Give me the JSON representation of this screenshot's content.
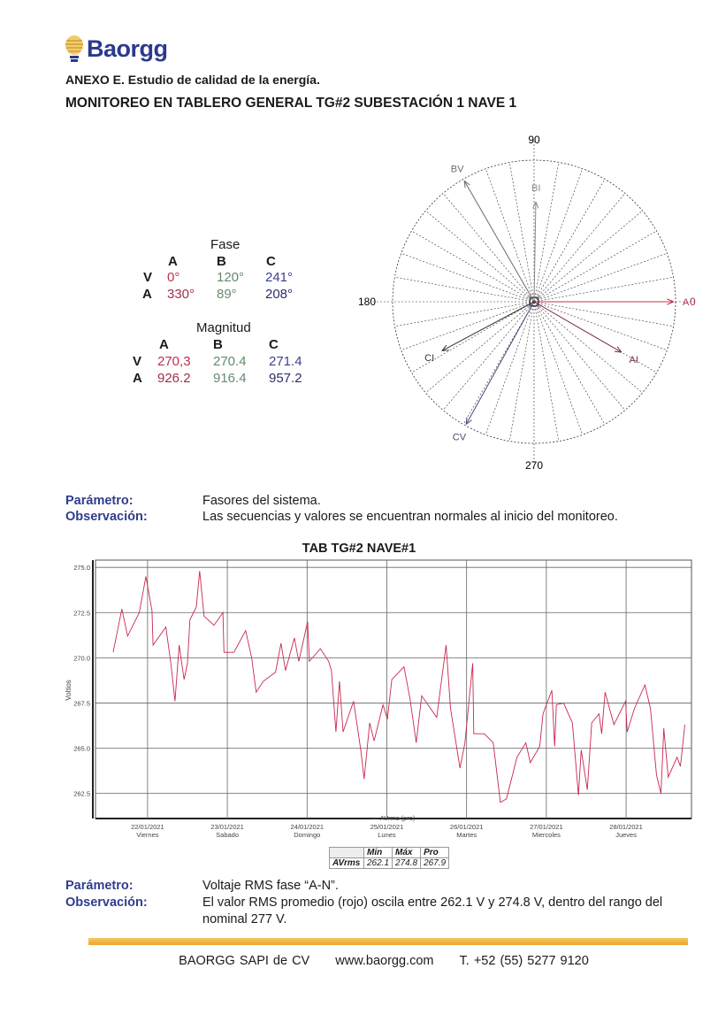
{
  "header": {
    "brand": "Baorgg",
    "annex_title": "ANEXO E. Estudio de calidad de la energía.",
    "section_title": "MONITOREO EN TABLERO GENERAL TG#2 SUBESTACIÓN 1 NAVE 1"
  },
  "phasor_table": {
    "fase_title": "Fase",
    "magnitud_title": "Magnitud",
    "columns": [
      "A",
      "B",
      "C"
    ],
    "rows": [
      "V",
      "A"
    ],
    "fase": {
      "V": [
        "0°",
        "120°",
        "241°"
      ],
      "A": [
        "330°",
        "89°",
        "208°"
      ]
    },
    "magnitud": {
      "V": [
        "270,3",
        "270.4",
        "271.4"
      ],
      "A": [
        "926.2",
        "916.4",
        "957.2"
      ]
    }
  },
  "phasor_diagram": {
    "axis_labels": {
      "top": "90",
      "left": "180",
      "bottom": "270",
      "right": "0"
    },
    "vectors": [
      {
        "label": "AV",
        "angle": 0,
        "magnitude": 270.3,
        "color": "#c0304a"
      },
      {
        "label": "BV",
        "angle": 120,
        "magnitude": 270.4,
        "color": "#6e6e6e"
      },
      {
        "label": "CV",
        "angle": 241,
        "magnitude": 271.4,
        "color": "#4a4c7a"
      },
      {
        "label": "AI",
        "angle": 330,
        "magnitude": 926.2,
        "color": "#7a2a4a"
      },
      {
        "label": "BI",
        "angle": 89,
        "magnitude": 916.4,
        "color": "#8a8a8a"
      },
      {
        "label": "CI",
        "angle": 208,
        "magnitude": 957.2,
        "color": "#333333"
      }
    ]
  },
  "section1": {
    "param_label": "Parámetro:",
    "param_value": "Fasores del sistema.",
    "obs_label": "Observación:",
    "obs_value": "Las secuencias y valores se encuentran normales al inicio del monitoreo."
  },
  "chart_data": {
    "type": "line",
    "title": "TAB TG#2 NAVE#1",
    "ylabel": "Voltios",
    "xlabel": "",
    "ylim": [
      261.6,
      275.4
    ],
    "xlim": [
      "2021-01-21T08:20",
      "2021-01-28T19:40"
    ],
    "yticks": [
      "275.0",
      "272.5",
      "270.0",
      "267.5",
      "265.0",
      "262.5"
    ],
    "xticks": [
      {
        "date": "22/01/2021",
        "day": "Viernes",
        "t": "2021-01-22T00:00"
      },
      {
        "date": "23/01/2021",
        "day": "Sabado",
        "t": "2021-01-23T00:00"
      },
      {
        "date": "24/01/2021",
        "day": "Domingo",
        "t": "2021-01-24T00:00"
      },
      {
        "date": "25/01/2021",
        "day": "Lunes",
        "t": "2021-01-25T00:00"
      },
      {
        "date": "26/01/2021",
        "day": "Martes",
        "t": "2021-01-26T00:00"
      },
      {
        "date": "27/01/2021",
        "day": "Miercoles",
        "t": "2021-01-27T00:00"
      },
      {
        "date": "28/01/2021",
        "day": "Jueves",
        "t": "2021-01-28T00:00"
      }
    ],
    "grid": true,
    "legend": "bottom",
    "series": [
      {
        "name": "AVrms (pro)",
        "color": "#c8284e",
        "points": [
          [
            "2021-01-21T13:40",
            270.3
          ],
          [
            "2021-01-21T16:15",
            272.7
          ],
          [
            "2021-01-21T18:00",
            271.2
          ],
          [
            "2021-01-21T21:30",
            272.5
          ],
          [
            "2021-01-21T23:30",
            274.5
          ],
          [
            "2021-01-22T01:20",
            272.6
          ],
          [
            "2021-01-22T01:40",
            270.7
          ],
          [
            "2021-01-22T05:30",
            271.7
          ],
          [
            "2021-01-22T07:00",
            269.7
          ],
          [
            "2021-01-22T08:15",
            267.6
          ],
          [
            "2021-01-22T09:30",
            270.7
          ],
          [
            "2021-01-22T11:00",
            268.8
          ],
          [
            "2021-01-22T12:00",
            269.7
          ],
          [
            "2021-01-22T12:45",
            272.1
          ],
          [
            "2021-01-22T14:40",
            272.8
          ],
          [
            "2021-01-22T15:40",
            274.8
          ],
          [
            "2021-01-22T17:00",
            272.3
          ],
          [
            "2021-01-22T20:00",
            271.8
          ],
          [
            "2021-01-22T22:40",
            272.5
          ],
          [
            "2021-01-22T23:00",
            270.3
          ],
          [
            "2021-01-23T02:00",
            270.3
          ],
          [
            "2021-01-23T05:30",
            271.5
          ],
          [
            "2021-01-23T07:20",
            270.0
          ],
          [
            "2021-01-23T08:40",
            268.1
          ],
          [
            "2021-01-23T10:50",
            268.7
          ],
          [
            "2021-01-23T14:30",
            269.2
          ],
          [
            "2021-01-23T16:10",
            270.8
          ],
          [
            "2021-01-23T17:30",
            269.3
          ],
          [
            "2021-01-23T20:10",
            271.1
          ],
          [
            "2021-01-23T21:30",
            269.8
          ],
          [
            "2021-01-24T00:10",
            272.0
          ],
          [
            "2021-01-24T00:40",
            269.8
          ],
          [
            "2021-01-24T04:00",
            270.5
          ],
          [
            "2021-01-24T06:30",
            269.8
          ],
          [
            "2021-01-24T07:20",
            269.3
          ],
          [
            "2021-01-24T08:40",
            265.9
          ],
          [
            "2021-01-24T09:45",
            268.7
          ],
          [
            "2021-01-24T10:50",
            265.9
          ],
          [
            "2021-01-24T14:00",
            267.6
          ],
          [
            "2021-01-24T16:10",
            264.9
          ],
          [
            "2021-01-24T17:10",
            263.3
          ],
          [
            "2021-01-24T18:50",
            266.4
          ],
          [
            "2021-01-24T20:10",
            265.4
          ],
          [
            "2021-01-24T22:50",
            267.4
          ],
          [
            "2021-01-25T00:10",
            266.6
          ],
          [
            "2021-01-25T01:30",
            268.8
          ],
          [
            "2021-01-25T05:10",
            269.5
          ],
          [
            "2021-01-25T07:00",
            267.7
          ],
          [
            "2021-01-25T08:50",
            265.3
          ],
          [
            "2021-01-25T10:30",
            267.9
          ],
          [
            "2021-01-25T15:00",
            266.7
          ],
          [
            "2021-01-25T17:50",
            270.7
          ],
          [
            "2021-01-25T19:10",
            267.2
          ],
          [
            "2021-01-25T22:00",
            263.9
          ],
          [
            "2021-01-25T23:30",
            265.3
          ],
          [
            "2021-01-26T01:50",
            269.7
          ],
          [
            "2021-01-26T02:10",
            265.8
          ],
          [
            "2021-01-26T05:20",
            265.8
          ],
          [
            "2021-01-26T08:00",
            265.3
          ],
          [
            "2021-01-26T10:10",
            262.0
          ],
          [
            "2021-01-26T12:00",
            262.2
          ],
          [
            "2021-01-26T15:10",
            264.5
          ],
          [
            "2021-01-26T17:50",
            265.3
          ],
          [
            "2021-01-26T19:10",
            264.2
          ],
          [
            "2021-01-26T22:00",
            265.1
          ],
          [
            "2021-01-26T23:00",
            266.9
          ],
          [
            "2021-01-27T01:40",
            268.2
          ],
          [
            "2021-01-27T02:30",
            265.1
          ],
          [
            "2021-01-27T03:00",
            267.4
          ],
          [
            "2021-01-27T05:10",
            267.5
          ],
          [
            "2021-01-27T07:50",
            266.4
          ],
          [
            "2021-01-27T09:40",
            262.4
          ],
          [
            "2021-01-27T10:30",
            264.9
          ],
          [
            "2021-01-27T12:20",
            262.7
          ],
          [
            "2021-01-27T13:40",
            266.4
          ],
          [
            "2021-01-27T15:50",
            266.9
          ],
          [
            "2021-01-27T16:40",
            265.8
          ],
          [
            "2021-01-27T17:40",
            268.1
          ],
          [
            "2021-01-27T20:20",
            266.3
          ],
          [
            "2021-01-27T23:50",
            267.6
          ],
          [
            "2021-01-28T00:20",
            265.9
          ],
          [
            "2021-01-28T02:30",
            267.2
          ],
          [
            "2021-01-28T05:40",
            268.5
          ],
          [
            "2021-01-28T07:20",
            267.2
          ],
          [
            "2021-01-28T09:10",
            263.5
          ],
          [
            "2021-01-28T10:30",
            262.5
          ],
          [
            "2021-01-28T11:20",
            266.1
          ],
          [
            "2021-01-28T12:40",
            263.4
          ],
          [
            "2021-01-28T15:20",
            264.5
          ],
          [
            "2021-01-28T16:20",
            264.0
          ],
          [
            "2021-01-28T17:40",
            266.3
          ]
        ]
      }
    ],
    "legend_label": "— AVrms (pro)",
    "stats": {
      "headers": [
        "Min",
        "Máx",
        "Pro"
      ],
      "row_label": "AVrms",
      "values": [
        "262.1",
        "274.8",
        "267.9"
      ]
    }
  },
  "section2": {
    "param_label": "Parámetro:",
    "param_value": "Voltaje RMS fase “A-N”.",
    "obs_label": "Observación:",
    "obs_value_line1": "El valor RMS promedio (rojo) oscila entre 262.1 V y 274.8 V, dentro del rango del",
    "obs_value_line2": "nominal 277 V."
  },
  "footer": {
    "company": "BAORGG SAPI de CV",
    "website": "www.baorgg.com",
    "phone": "T. +52 (55) 5277 9120",
    "accent_color": "#f0b545"
  }
}
